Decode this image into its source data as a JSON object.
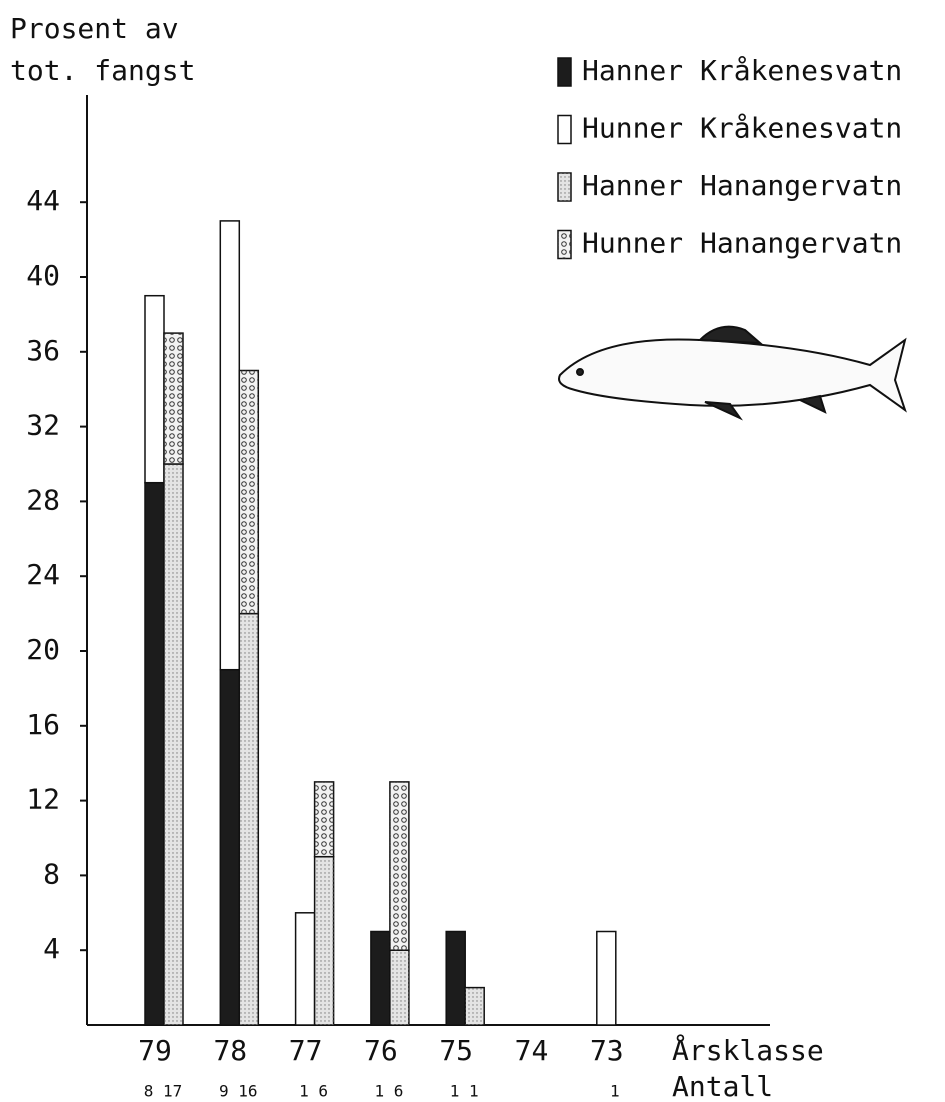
{
  "chart_data": {
    "type": "bar",
    "ylabel": [
      "Prosent av",
      "tot. fangst"
    ],
    "xlabel": "Årsklasse",
    "count_label": "Antall",
    "categories": [
      "79",
      "78",
      "77",
      "76",
      "75",
      "74",
      "73"
    ],
    "counts": [
      "8 17",
      "9 16",
      "1 6",
      "1 6",
      "1 1",
      null,
      "1"
    ],
    "series": [
      {
        "name": "Hanner Kråkenesvatn",
        "color": "#1c1c1c",
        "values": [
          29,
          19,
          0,
          5,
          5,
          0,
          0
        ]
      },
      {
        "name": "Hunner Kråkenesvatn",
        "color": "#ffffff",
        "values": [
          10,
          24,
          6,
          0,
          0,
          0,
          5
        ]
      },
      {
        "name": "Hanner Hanangervatn",
        "color": "#e4e4e4",
        "values": [
          30,
          22,
          9,
          4,
          2,
          0,
          0
        ]
      },
      {
        "name": "Hunner Hanangervatn",
        "color": "#f2f2f2",
        "values": [
          7,
          13,
          4,
          9,
          0,
          0,
          0
        ]
      }
    ],
    "ylim": [
      0,
      48
    ],
    "yticks": [
      4,
      8,
      12,
      16,
      20,
      24,
      28,
      32,
      36,
      40,
      44
    ]
  }
}
